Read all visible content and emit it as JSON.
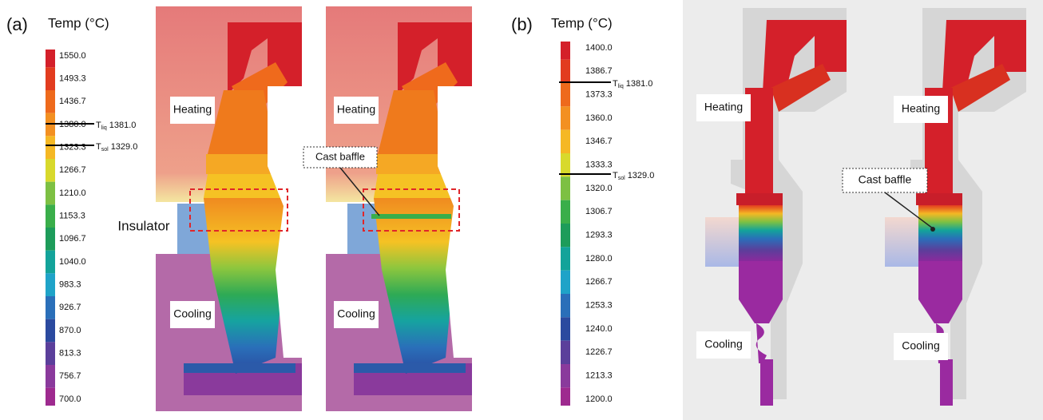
{
  "panels": [
    {
      "label": "(a)",
      "colorbar": {
        "title": "Temp (°C)",
        "ticks": [
          "1550.0",
          "1493.3",
          "1436.7",
          "1380.0",
          "1323.3",
          "1266.7",
          "1210.0",
          "1153.3",
          "1096.7",
          "1040.0",
          "983.3",
          "926.7",
          "870.0",
          "813.3",
          "756.7",
          "700.0"
        ],
        "colors": [
          "#d4202a",
          "#e23c1f",
          "#ee6a1c",
          "#f39021",
          "#f5b824",
          "#d8d92c",
          "#7dc043",
          "#3aae4a",
          "#1d9c5a",
          "#13a39a",
          "#1fa3c8",
          "#2a6fb9",
          "#2b4a9f",
          "#5b3f9b",
          "#8a3a9c",
          "#9e2a8f"
        ]
      },
      "liquidus": {
        "symbol": "T",
        "subscript": "liq",
        "value": "1381.0"
      },
      "solidus": {
        "symbol": "T",
        "subscript": "sol",
        "value": "1329.0"
      },
      "insulator": "Insulator",
      "cast_baffle": "Cast baffle",
      "images": [
        {
          "heating": "Heating",
          "cooling": "Cooling"
        },
        {
          "heating": "Heating",
          "cooling": "Cooling"
        }
      ]
    },
    {
      "label": "(b)",
      "colorbar": {
        "title": "Temp (°C)",
        "ticks": [
          "1400.0",
          "1386.7",
          "1373.3",
          "1360.0",
          "1346.7",
          "1333.3",
          "1320.0",
          "1306.7",
          "1293.3",
          "1280.0",
          "1266.7",
          "1253.3",
          "1240.0",
          "1226.7",
          "1213.3",
          "1200.0"
        ],
        "colors": [
          "#d4202a",
          "#e23c1f",
          "#ee6a1c",
          "#f39021",
          "#f5b824",
          "#d8d92c",
          "#7dc043",
          "#3aae4a",
          "#1d9c5a",
          "#13a39a",
          "#1fa3c8",
          "#2a6fb9",
          "#2b4a9f",
          "#5b3f9b",
          "#8a3a9c",
          "#9e2a8f"
        ]
      },
      "liquidus": {
        "symbol": "T",
        "subscript": "liq",
        "value": "1381.0"
      },
      "solidus": {
        "symbol": "T",
        "subscript": "sol",
        "value": "1329.0"
      },
      "cast_baffle": "Cast baffle",
      "images": [
        {
          "heating": "Heating",
          "cooling": "Cooling"
        },
        {
          "heating": "Heating",
          "cooling": "Cooling"
        }
      ]
    }
  ]
}
